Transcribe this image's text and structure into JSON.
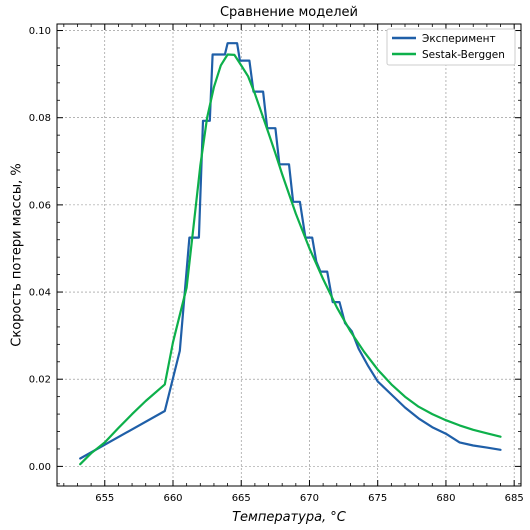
{
  "chart_data": {
    "type": "line",
    "title": "Сравнение моделей",
    "xlabel": "Температура, °C",
    "ylabel": "Скорость потери массы, %",
    "xlim": [
      651.5,
      685.5
    ],
    "ylim": [
      -0.0045,
      0.1015
    ],
    "xticks": [
      655,
      660,
      665,
      670,
      675,
      680,
      685
    ],
    "xtick_labels": [
      "655",
      "660",
      "665",
      "670",
      "675",
      "680",
      "685"
    ],
    "yticks": [
      0.0,
      0.02,
      0.04,
      0.06,
      0.08,
      0.1
    ],
    "ytick_labels": [
      "0.00",
      "0.02",
      "0.04",
      "0.06",
      "0.08",
      "0.10"
    ],
    "grid": true,
    "legend_position": "top-right",
    "series": [
      {
        "name": "Эксперимент",
        "color": "#1f5fa8",
        "x": [
          653.2,
          659.4,
          660.5,
          661.2,
          661.4,
          661.9,
          662.2,
          662.7,
          662.9,
          663.8,
          664.0,
          664.7,
          664.9,
          665.6,
          665.9,
          666.6,
          666.9,
          667.5,
          667.8,
          668.5,
          668.8,
          669.3,
          669.7,
          670.2,
          670.5,
          670.8,
          671.3,
          671.7,
          672.2,
          672.6,
          673.1,
          673.6,
          674.3,
          675.0,
          676.0,
          677.0,
          678.0,
          679.0,
          680.0,
          681.0,
          682.0,
          683.0,
          684.0
        ],
        "y": [
          0.0018,
          0.0127,
          0.0265,
          0.0525,
          0.0525,
          0.0525,
          0.0793,
          0.0793,
          0.0945,
          0.0945,
          0.0971,
          0.0971,
          0.0931,
          0.0931,
          0.086,
          0.086,
          0.0776,
          0.0776,
          0.0693,
          0.0693,
          0.0607,
          0.0607,
          0.0525,
          0.0525,
          0.047,
          0.0447,
          0.0447,
          0.0377,
          0.0377,
          0.0329,
          0.031,
          0.027,
          0.023,
          0.0195,
          0.0165,
          0.0135,
          0.011,
          0.009,
          0.0075,
          0.0055,
          0.0048,
          0.0043,
          0.0038
        ]
      },
      {
        "name": "Sestak-Berggen",
        "color": "#0db04b",
        "x": [
          653.2,
          654.0,
          655.0,
          656.0,
          657.0,
          658.0,
          659.4,
          660.0,
          661.0,
          661.5,
          662.0,
          662.5,
          663.0,
          663.5,
          664.0,
          664.5,
          665.0,
          665.5,
          666.0,
          666.5,
          667.0,
          667.5,
          668.0,
          669.0,
          670.0,
          671.0,
          672.0,
          673.0,
          674.0,
          675.0,
          676.0,
          677.0,
          678.0,
          679.0,
          680.0,
          681.0,
          682.0,
          683.0,
          684.0
        ],
        "y": [
          0.0005,
          0.003,
          0.0055,
          0.0088,
          0.012,
          0.015,
          0.0188,
          0.0285,
          0.041,
          0.055,
          0.069,
          0.08,
          0.087,
          0.092,
          0.0945,
          0.0944,
          0.092,
          0.0895,
          0.0855,
          0.081,
          0.0765,
          0.0718,
          0.067,
          0.058,
          0.05,
          0.043,
          0.0365,
          0.031,
          0.0263,
          0.0222,
          0.0188,
          0.016,
          0.0137,
          0.012,
          0.0106,
          0.0094,
          0.0084,
          0.0076,
          0.0068
        ]
      }
    ]
  }
}
